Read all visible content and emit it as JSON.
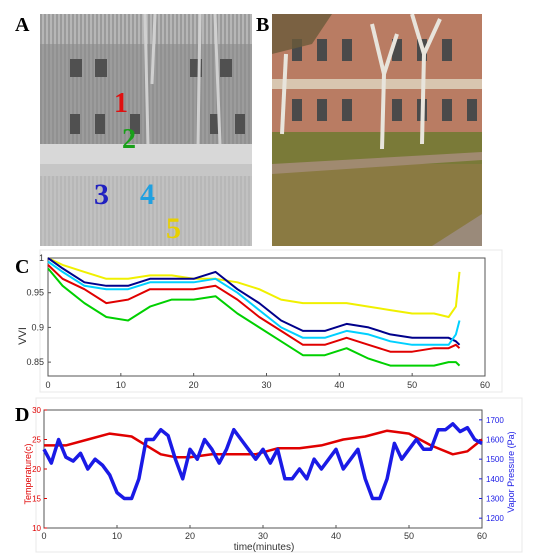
{
  "panels": {
    "a": "A",
    "b": "B",
    "c": "C",
    "d": "D"
  },
  "thermal_markers": [
    {
      "label": "1",
      "color": "#e01010"
    },
    {
      "label": "2",
      "color": "#18a018"
    },
    {
      "label": "3",
      "color": "#2020c0"
    },
    {
      "label": "4",
      "color": "#20a0e0"
    },
    {
      "label": "5",
      "color": "#e8d000"
    }
  ],
  "chart_data": [
    {
      "type": "line",
      "ylabel": "VVI",
      "xlim": [
        0,
        60
      ],
      "ylim": [
        0.83,
        1.0
      ],
      "xticks": [
        0,
        10,
        20,
        30,
        40,
        50,
        60
      ],
      "yticks": [
        0.85,
        0.9,
        0.95,
        1
      ],
      "ytick_labels": [
        "0.85",
        "0.9",
        "0.95",
        "1"
      ],
      "series": [
        {
          "color": "#f0f000",
          "x": [
            0,
            2,
            5,
            8,
            11,
            14,
            17,
            20,
            23,
            26,
            29,
            32,
            35,
            38,
            41,
            44,
            47,
            50,
            53,
            55,
            56,
            56.5
          ],
          "values": [
            1.0,
            0.99,
            0.98,
            0.97,
            0.97,
            0.975,
            0.975,
            0.97,
            0.97,
            0.965,
            0.955,
            0.94,
            0.935,
            0.935,
            0.935,
            0.93,
            0.925,
            0.92,
            0.92,
            0.915,
            0.93,
            0.98
          ]
        },
        {
          "color": "#00008b",
          "x": [
            0,
            2,
            5,
            8,
            11,
            14,
            17,
            20,
            23,
            26,
            29,
            32,
            35,
            38,
            41,
            44,
            47,
            50,
            53,
            55,
            56,
            56.5
          ],
          "values": [
            1.0,
            0.985,
            0.965,
            0.96,
            0.96,
            0.97,
            0.97,
            0.97,
            0.98,
            0.955,
            0.935,
            0.91,
            0.895,
            0.895,
            0.905,
            0.9,
            0.89,
            0.885,
            0.885,
            0.885,
            0.88,
            0.875
          ]
        },
        {
          "color": "#00d0ff",
          "x": [
            0,
            2,
            5,
            8,
            11,
            14,
            17,
            20,
            23,
            26,
            29,
            32,
            35,
            38,
            41,
            44,
            47,
            50,
            53,
            55,
            56,
            56.5
          ],
          "values": [
            0.995,
            0.98,
            0.96,
            0.955,
            0.955,
            0.965,
            0.965,
            0.965,
            0.97,
            0.95,
            0.925,
            0.9,
            0.885,
            0.885,
            0.895,
            0.89,
            0.88,
            0.875,
            0.875,
            0.875,
            0.89,
            0.91
          ]
        },
        {
          "color": "#e00000",
          "x": [
            0,
            2,
            5,
            8,
            11,
            14,
            17,
            20,
            23,
            26,
            29,
            32,
            35,
            38,
            41,
            44,
            47,
            50,
            53,
            55,
            56,
            56.5
          ],
          "values": [
            0.99,
            0.97,
            0.955,
            0.935,
            0.94,
            0.955,
            0.955,
            0.955,
            0.96,
            0.94,
            0.915,
            0.895,
            0.875,
            0.875,
            0.885,
            0.875,
            0.865,
            0.865,
            0.87,
            0.87,
            0.875,
            0.87
          ]
        },
        {
          "color": "#00d000",
          "x": [
            0,
            2,
            5,
            8,
            11,
            14,
            17,
            20,
            23,
            26,
            29,
            32,
            35,
            38,
            41,
            44,
            47,
            50,
            53,
            55,
            56,
            56.5
          ],
          "values": [
            0.985,
            0.96,
            0.935,
            0.915,
            0.91,
            0.93,
            0.94,
            0.94,
            0.945,
            0.92,
            0.9,
            0.88,
            0.86,
            0.86,
            0.87,
            0.855,
            0.845,
            0.845,
            0.845,
            0.85,
            0.85,
            0.845
          ]
        }
      ]
    },
    {
      "type": "line",
      "xlabel": "time(minutes)",
      "ylabel": "Temperature(c)",
      "y2label": "Vapor Pressure (Pa)",
      "xlim": [
        0,
        60
      ],
      "ylim": [
        10,
        30
      ],
      "y2lim": [
        1150,
        1750
      ],
      "xticks": [
        0,
        10,
        20,
        30,
        40,
        50,
        60
      ],
      "yticks": [
        10,
        15,
        20,
        25,
        30
      ],
      "y2ticks": [
        1200,
        1300,
        1400,
        1500,
        1600,
        1700
      ],
      "series": [
        {
          "axis": "left",
          "color": "#e00000",
          "x": [
            0,
            3,
            6,
            9,
            12,
            14,
            16,
            18,
            20,
            23,
            26,
            29,
            32,
            35,
            38,
            41,
            44,
            47,
            50,
            53,
            56,
            58,
            60
          ],
          "values": [
            24,
            24,
            25,
            26,
            25.5,
            24,
            22.5,
            22,
            22,
            22.5,
            22.5,
            22.5,
            23.5,
            23.5,
            24,
            25,
            25.5,
            26.5,
            26,
            24,
            22.5,
            23,
            25
          ]
        },
        {
          "axis": "right",
          "color": "#1a1ae6",
          "x": [
            0,
            1,
            2,
            3,
            4,
            5,
            6,
            7,
            8,
            9,
            10,
            11,
            12,
            13,
            14,
            15,
            16,
            17,
            18,
            19,
            20,
            21,
            22,
            23,
            24,
            25,
            26,
            27,
            28,
            29,
            30,
            31,
            32,
            33,
            34,
            35,
            36,
            37,
            38,
            39,
            40,
            41,
            42,
            43,
            44,
            45,
            46,
            47,
            48,
            49,
            50,
            51,
            52,
            53,
            54,
            55,
            56,
            57,
            58,
            59,
            60
          ],
          "values": [
            1550,
            1480,
            1600,
            1510,
            1490,
            1530,
            1450,
            1500,
            1470,
            1420,
            1330,
            1300,
            1300,
            1400,
            1600,
            1600,
            1650,
            1620,
            1500,
            1400,
            1550,
            1500,
            1600,
            1550,
            1480,
            1550,
            1650,
            1600,
            1550,
            1500,
            1550,
            1480,
            1550,
            1400,
            1400,
            1450,
            1400,
            1500,
            1450,
            1500,
            1550,
            1450,
            1500,
            1550,
            1400,
            1300,
            1300,
            1400,
            1580,
            1500,
            1550,
            1600,
            1550,
            1550,
            1650,
            1650,
            1680,
            1640,
            1660,
            1600,
            1580
          ]
        }
      ]
    }
  ]
}
